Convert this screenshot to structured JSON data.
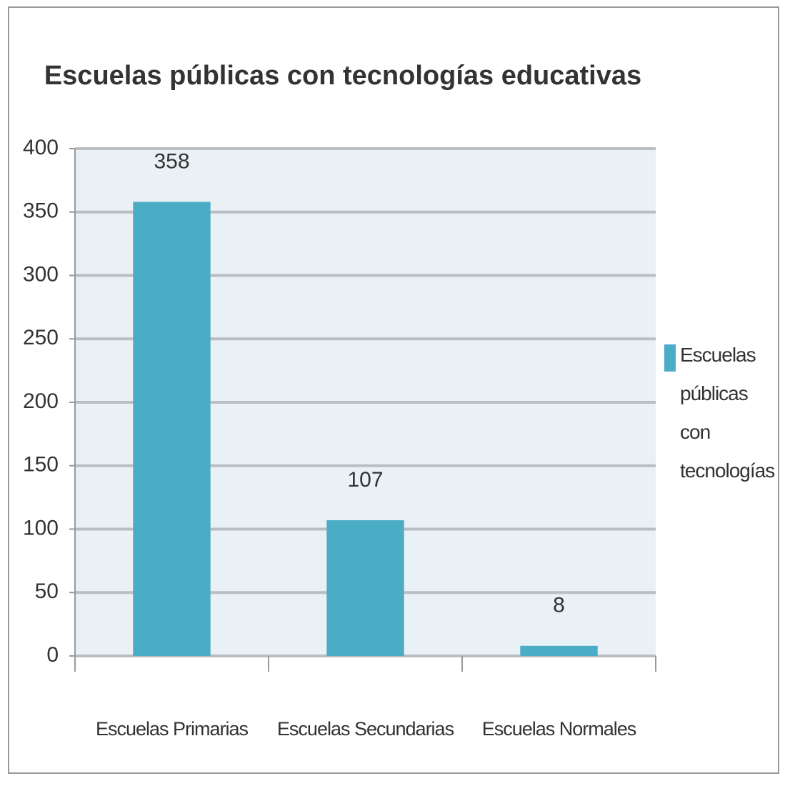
{
  "chart_data": {
    "type": "bar",
    "title": "Escuelas públicas con tecnologías educativas",
    "categories": [
      "Escuelas Primarias",
      "Escuelas Secundarias",
      "Escuelas Normales"
    ],
    "series": [
      {
        "name": "Escuelas públicas con tecnologías",
        "color": "#4bacc6",
        "values": [
          358,
          107,
          8
        ]
      }
    ],
    "ylim": [
      0,
      400
    ],
    "yticks": [
      0,
      50,
      100,
      150,
      200,
      250,
      300,
      350,
      400
    ],
    "grid": true,
    "legend": "right"
  }
}
